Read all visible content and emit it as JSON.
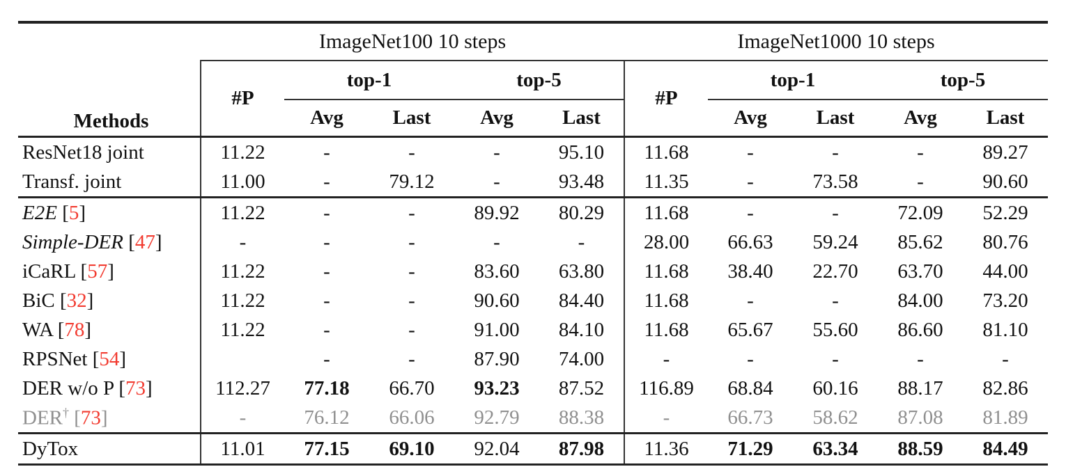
{
  "table": {
    "colors": {
      "citation_red": "#f23b30",
      "gray_row": "#8f8f8f",
      "text": "#111111",
      "rule": "#222222"
    },
    "col_groups": [
      {
        "title": "ImageNet100 10 steps"
      },
      {
        "title": "ImageNet1000 10 steps"
      }
    ],
    "headers": {
      "methods": "Methods",
      "params": "#P",
      "top1": "top-1",
      "top5": "top-5",
      "avg": "Avg",
      "last": "Last"
    },
    "sections": [
      {
        "rows": [
          {
            "method": "ResNet18 joint",
            "cite": "",
            "italic": false,
            "gray": false,
            "dagger": false,
            "cells": [
              "11.22",
              "-",
              "-",
              "-",
              "95.10",
              "11.68",
              "-",
              "-",
              "-",
              "89.27"
            ],
            "bold": [
              0,
              0,
              0,
              0,
              0,
              0,
              0,
              0,
              0,
              0
            ]
          },
          {
            "method": "Transf. joint",
            "cite": "",
            "italic": false,
            "gray": false,
            "dagger": false,
            "cells": [
              "11.00",
              "-",
              "79.12",
              "-",
              "93.48",
              "11.35",
              "-",
              "73.58",
              "-",
              "90.60"
            ],
            "bold": [
              0,
              0,
              0,
              0,
              0,
              0,
              0,
              0,
              0,
              0
            ]
          }
        ]
      },
      {
        "rows": [
          {
            "method": "E2E",
            "cite": "5",
            "italic": true,
            "gray": false,
            "dagger": false,
            "cells": [
              "11.22",
              "-",
              "-",
              "89.92",
              "80.29",
              "11.68",
              "-",
              "-",
              "72.09",
              "52.29"
            ],
            "bold": [
              0,
              0,
              0,
              0,
              0,
              0,
              0,
              0,
              0,
              0
            ]
          },
          {
            "method": "Simple-DER",
            "cite": "47",
            "italic": true,
            "gray": false,
            "dagger": false,
            "cells": [
              "-",
              "-",
              "-",
              "-",
              "-",
              "28.00",
              "66.63",
              "59.24",
              "85.62",
              "80.76"
            ],
            "bold": [
              0,
              0,
              0,
              0,
              0,
              0,
              0,
              0,
              0,
              0
            ]
          },
          {
            "method": "iCaRL",
            "cite": "57",
            "italic": false,
            "gray": false,
            "dagger": false,
            "cells": [
              "11.22",
              "-",
              "-",
              "83.60",
              "63.80",
              "11.68",
              "38.40",
              "22.70",
              "63.70",
              "44.00"
            ],
            "bold": [
              0,
              0,
              0,
              0,
              0,
              0,
              0,
              0,
              0,
              0
            ]
          },
          {
            "method": "BiC",
            "cite": "32",
            "italic": false,
            "gray": false,
            "dagger": false,
            "cells": [
              "11.22",
              "-",
              "-",
              "90.60",
              "84.40",
              "11.68",
              "-",
              "-",
              "84.00",
              "73.20"
            ],
            "bold": [
              0,
              0,
              0,
              0,
              0,
              0,
              0,
              0,
              0,
              0
            ]
          },
          {
            "method": "WA",
            "cite": "78",
            "italic": false,
            "gray": false,
            "dagger": false,
            "cells": [
              "11.22",
              "-",
              "-",
              "91.00",
              "84.10",
              "11.68",
              "65.67",
              "55.60",
              "86.60",
              "81.10"
            ],
            "bold": [
              0,
              0,
              0,
              0,
              0,
              0,
              0,
              0,
              0,
              0
            ]
          },
          {
            "method": "RPSNet",
            "cite": "54",
            "italic": false,
            "gray": false,
            "dagger": false,
            "cells": [
              "",
              "-",
              "-",
              "87.90",
              "74.00",
              "-",
              "-",
              "-",
              "-",
              "-"
            ],
            "bold": [
              0,
              0,
              0,
              0,
              0,
              0,
              0,
              0,
              0,
              0
            ]
          },
          {
            "method": "DER w/o P",
            "cite": "73",
            "italic": false,
            "gray": false,
            "dagger": false,
            "cells": [
              "112.27",
              "77.18",
              "66.70",
              "93.23",
              "87.52",
              "116.89",
              "68.84",
              "60.16",
              "88.17",
              "82.86"
            ],
            "bold": [
              0,
              1,
              0,
              1,
              0,
              0,
              0,
              0,
              0,
              0
            ]
          },
          {
            "method": "DER",
            "cite": "73",
            "italic": false,
            "gray": true,
            "dagger": true,
            "cells": [
              "-",
              "76.12",
              "66.06",
              "92.79",
              "88.38",
              "-",
              "66.73",
              "58.62",
              "87.08",
              "81.89"
            ],
            "bold": [
              0,
              0,
              0,
              0,
              0,
              0,
              0,
              0,
              0,
              0
            ]
          }
        ]
      },
      {
        "rows": [
          {
            "method": "DyTox",
            "cite": "",
            "italic": false,
            "gray": false,
            "dagger": false,
            "cells": [
              "11.01",
              "77.15",
              "69.10",
              "92.04",
              "87.98",
              "11.36",
              "71.29",
              "63.34",
              "88.59",
              "84.49"
            ],
            "bold": [
              0,
              1,
              1,
              0,
              1,
              0,
              1,
              1,
              1,
              1
            ]
          }
        ]
      }
    ]
  }
}
